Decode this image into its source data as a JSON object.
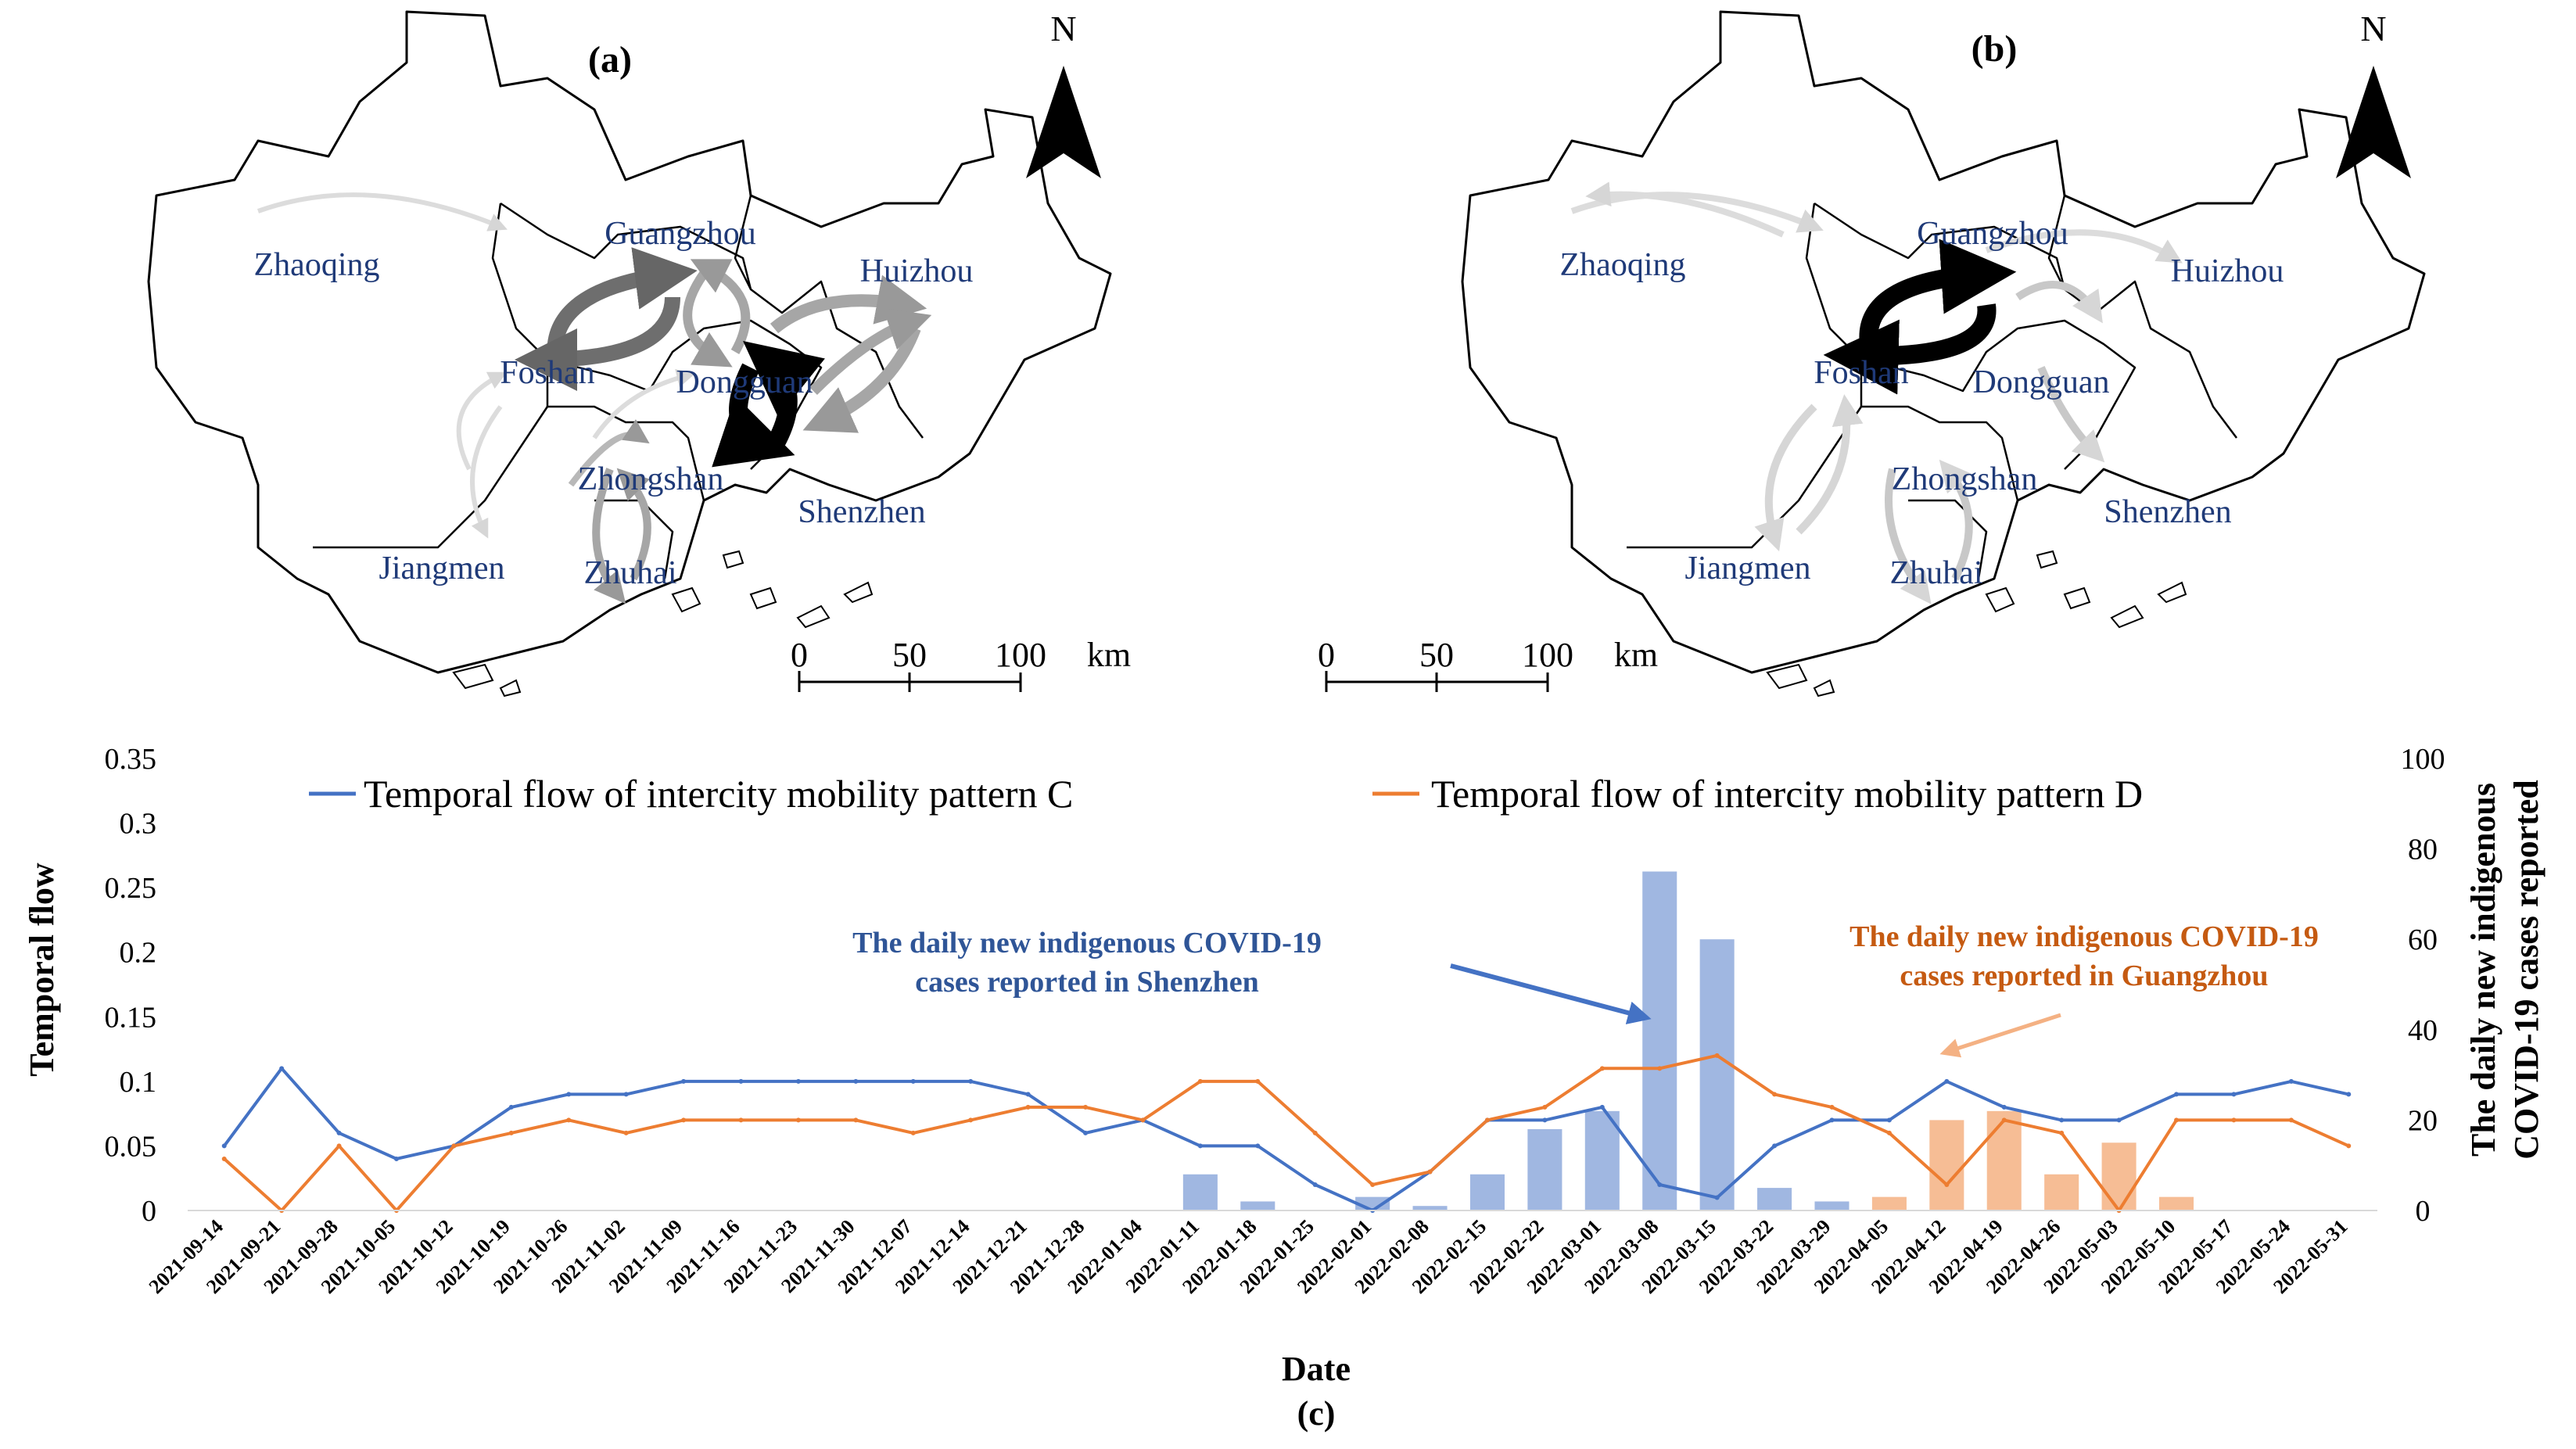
{
  "maps": [
    {
      "panel_label": "(a)",
      "north_label": "N",
      "cities": [
        "Zhaoqing",
        "Guangzhou",
        "Huizhou",
        "Foshan",
        "Dongguan",
        "Zhongshan",
        "Shenzhen",
        "Jiangmen",
        "Zhuhai"
      ],
      "scale": {
        "labels": [
          "0",
          "50",
          "100"
        ],
        "unit": "km"
      }
    },
    {
      "panel_label": "(b)",
      "north_label": "N",
      "cities": [
        "Zhaoqing",
        "Guangzhou",
        "Huizhou",
        "Foshan",
        "Dongguan",
        "Zhongshan",
        "Shenzhen",
        "Jiangmen",
        "Zhuhai"
      ],
      "scale": {
        "labels": [
          "0",
          "50",
          "100"
        ],
        "unit": "km"
      }
    }
  ],
  "chart_panel_label": "(c)",
  "annotations": {
    "shenzhen": [
      "The daily new indigenous COVID-19",
      "cases reported in Shenzhen"
    ],
    "guangzhou": [
      "The daily new indigenous COVID-19",
      "cases reported in Guangzhou"
    ]
  },
  "colors": {
    "pattern_c": "#4472c4",
    "pattern_d": "#ed7d31",
    "cases_shenzhen": "#8faadc",
    "cases_guangzhou": "#f4b183"
  },
  "chart_data": {
    "type": "line",
    "xlabel": "Date",
    "ylabel": "Temporal flow",
    "y2label": [
      "The daily new indigenous",
      "COVID-19 cases reported"
    ],
    "ylim": [
      0,
      0.35
    ],
    "y_ticks": [
      "0",
      "0.05",
      "0.1",
      "0.15",
      "0.2",
      "0.25",
      "0.3",
      "0.35"
    ],
    "y2lim": [
      0,
      100
    ],
    "y2_ticks": [
      "0",
      "20",
      "40",
      "60",
      "80",
      "100"
    ],
    "x_tick_labels": [
      "2021-09-14",
      "2021-09-21",
      "2021-09-28",
      "2021-10-05",
      "2021-10-12",
      "2021-10-19",
      "2021-10-26",
      "2021-11-02",
      "2021-11-09",
      "2021-11-16",
      "2021-11-23",
      "2021-11-30",
      "2021-12-07",
      "2021-12-14",
      "2021-12-21",
      "2021-12-28",
      "2022-01-04",
      "2022-01-11",
      "2022-01-18",
      "2022-01-25",
      "2022-02-01",
      "2022-02-08",
      "2022-02-15",
      "2022-02-22",
      "2022-03-01",
      "2022-03-08",
      "2022-03-15",
      "2022-03-22",
      "2022-03-29",
      "2022-04-05",
      "2022-04-12",
      "2022-04-19",
      "2022-04-26",
      "2022-05-03",
      "2022-05-10",
      "2022-05-17",
      "2022-05-24",
      "2022-05-31"
    ],
    "legend_position": "top",
    "series": [
      {
        "name": "Temporal flow of intercity mobility pattern C",
        "axis": "left",
        "weekly_values": [
          0.05,
          0.11,
          0.06,
          0.04,
          0.05,
          0.08,
          0.09,
          0.09,
          0.1,
          0.1,
          0.1,
          0.1,
          0.1,
          0.1,
          0.09,
          0.06,
          0.07,
          0.05,
          0.05,
          0.02,
          0.0,
          0.03,
          0.07,
          0.07,
          0.08,
          0.02,
          0.01,
          0.05,
          0.07,
          0.07,
          0.1,
          0.08,
          0.07,
          0.07,
          0.09,
          0.09,
          0.1,
          0.09
        ]
      },
      {
        "name": "Temporal flow of intercity mobility pattern D",
        "axis": "left",
        "weekly_values": [
          0.04,
          0.0,
          0.05,
          0.0,
          0.05,
          0.06,
          0.07,
          0.06,
          0.07,
          0.07,
          0.07,
          0.07,
          0.06,
          0.07,
          0.08,
          0.08,
          0.07,
          0.1,
          0.1,
          0.06,
          0.02,
          0.03,
          0.07,
          0.08,
          0.11,
          0.11,
          0.12,
          0.09,
          0.08,
          0.06,
          0.02,
          0.07,
          0.06,
          0.0,
          0.07,
          0.07,
          0.07,
          0.05
        ]
      },
      {
        "name": "The daily new indigenous COVID-19 cases reported in Shenzhen",
        "axis": "right",
        "type": "bar",
        "weekly_values": [
          0,
          0,
          0,
          0,
          0,
          0,
          0,
          0,
          0,
          0,
          0,
          0,
          0,
          0,
          0,
          0,
          0,
          8,
          2,
          0,
          3,
          1,
          8,
          18,
          22,
          75,
          60,
          5,
          2,
          0,
          0,
          0,
          0,
          0,
          0,
          0,
          0,
          0
        ]
      },
      {
        "name": "The daily new indigenous COVID-19 cases reported in Guangzhou",
        "axis": "right",
        "type": "bar",
        "weekly_values": [
          0,
          0,
          0,
          0,
          0,
          0,
          0,
          0,
          0,
          0,
          0,
          0,
          0,
          0,
          0,
          0,
          0,
          0,
          0,
          0,
          0,
          0,
          0,
          0,
          0,
          0,
          0,
          0,
          0,
          3,
          20,
          22,
          8,
          15,
          3,
          0,
          0,
          0
        ]
      }
    ]
  }
}
